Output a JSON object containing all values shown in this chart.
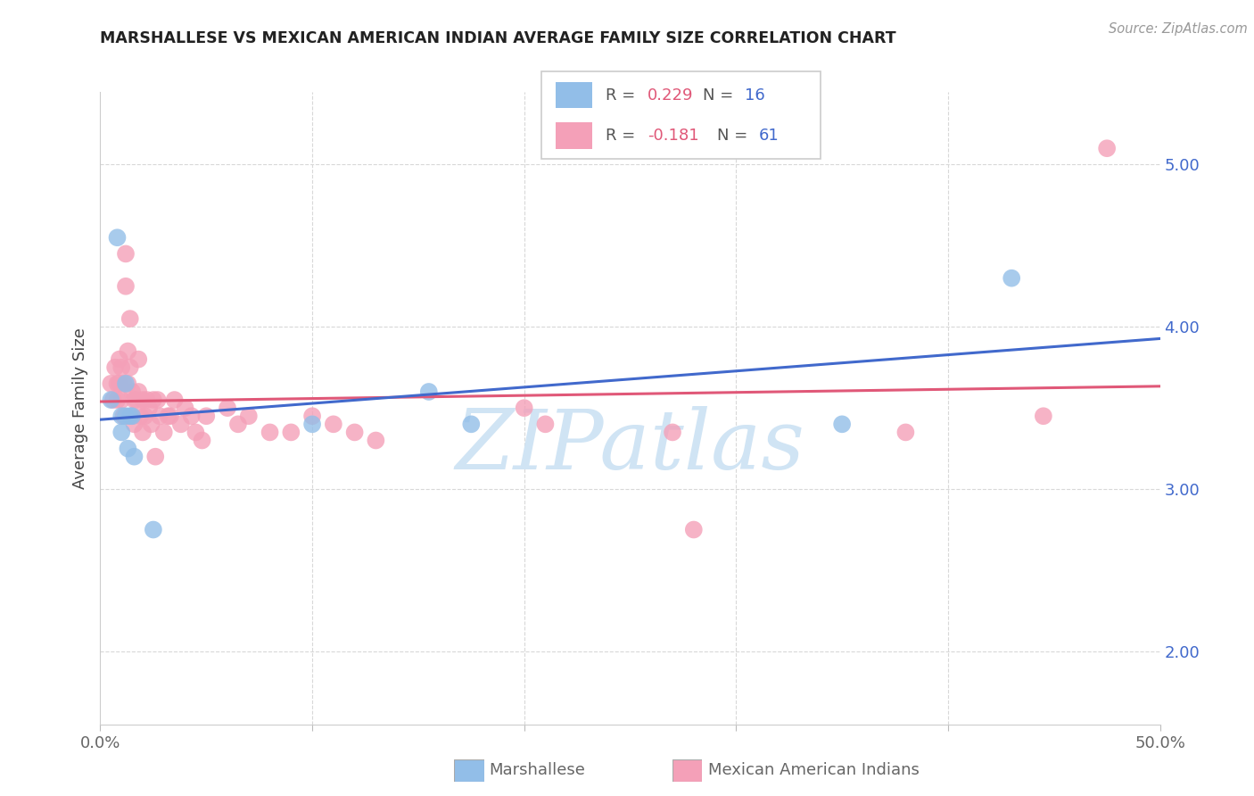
{
  "title": "MARSHALLESE VS MEXICAN AMERICAN INDIAN AVERAGE FAMILY SIZE CORRELATION CHART",
  "source": "Source: ZipAtlas.com",
  "ylabel": "Average Family Size",
  "ytick_values": [
    2.0,
    3.0,
    4.0,
    5.0
  ],
  "xlim": [
    0.0,
    0.5
  ],
  "ylim": [
    1.55,
    5.45
  ],
  "legend_blue_R": "0.229",
  "legend_blue_N": "16",
  "legend_pink_R": "-0.181",
  "legend_pink_N": "61",
  "blue_fill": "#92bee8",
  "pink_fill": "#f4a0b8",
  "blue_line": "#4169cc",
  "pink_line": "#e05878",
  "text_dark": "#444444",
  "text_label": "#666666",
  "grid_color": "#d8d8d8",
  "watermark_color": "#d0e4f4",
  "marshallese_x": [
    0.005,
    0.008,
    0.01,
    0.01,
    0.012,
    0.012,
    0.013,
    0.014,
    0.015,
    0.016,
    0.025,
    0.1,
    0.155,
    0.175,
    0.35,
    0.43
  ],
  "marshallese_y": [
    3.55,
    4.55,
    3.45,
    3.35,
    3.65,
    3.45,
    3.25,
    3.45,
    3.45,
    3.2,
    2.75,
    3.4,
    3.6,
    3.4,
    3.4,
    4.3
  ],
  "mexican_ai_x": [
    0.005,
    0.006,
    0.007,
    0.008,
    0.008,
    0.009,
    0.009,
    0.01,
    0.01,
    0.011,
    0.011,
    0.012,
    0.012,
    0.013,
    0.013,
    0.014,
    0.014,
    0.015,
    0.015,
    0.016,
    0.016,
    0.017,
    0.018,
    0.018,
    0.019,
    0.02,
    0.02,
    0.021,
    0.022,
    0.023,
    0.024,
    0.025,
    0.026,
    0.027,
    0.028,
    0.03,
    0.032,
    0.033,
    0.035,
    0.038,
    0.04,
    0.043,
    0.045,
    0.048,
    0.05,
    0.06,
    0.065,
    0.07,
    0.08,
    0.09,
    0.1,
    0.11,
    0.12,
    0.13,
    0.2,
    0.21,
    0.27,
    0.28,
    0.38,
    0.445,
    0.475
  ],
  "mexican_ai_y": [
    3.65,
    3.55,
    3.75,
    3.65,
    3.55,
    3.8,
    3.65,
    3.75,
    3.55,
    3.65,
    3.45,
    4.45,
    4.25,
    3.85,
    3.65,
    4.05,
    3.75,
    3.6,
    3.45,
    3.55,
    3.4,
    3.55,
    3.8,
    3.6,
    3.45,
    3.55,
    3.35,
    3.45,
    3.55,
    3.5,
    3.4,
    3.55,
    3.2,
    3.55,
    3.45,
    3.35,
    3.45,
    3.45,
    3.55,
    3.4,
    3.5,
    3.45,
    3.35,
    3.3,
    3.45,
    3.5,
    3.4,
    3.45,
    3.35,
    3.35,
    3.45,
    3.4,
    3.35,
    3.3,
    3.5,
    3.4,
    3.35,
    2.75,
    3.35,
    3.45,
    5.1
  ]
}
